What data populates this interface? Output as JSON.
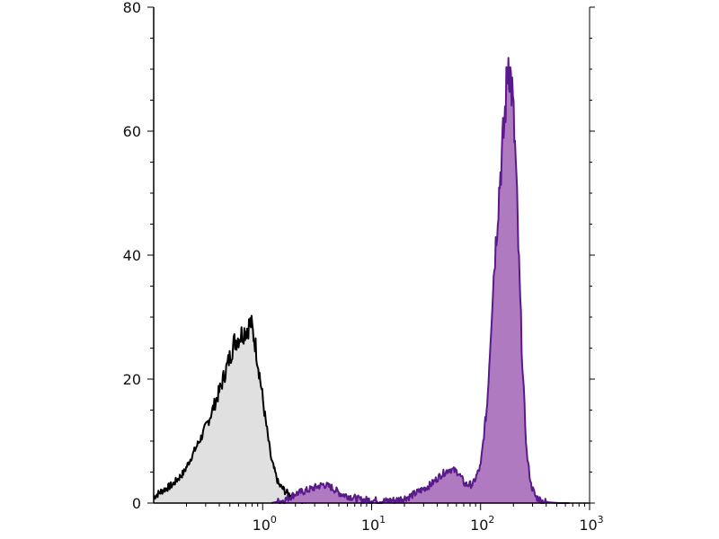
{
  "chart_data": {
    "type": "area",
    "x_scale": "log",
    "xlim": [
      0.1,
      1000
    ],
    "ylim": [
      0,
      80
    ],
    "grid": false,
    "legend": "none",
    "xlabel": "",
    "ylabel": "",
    "x_ticks": [
      {
        "value": 1,
        "base": "10",
        "exp": "0"
      },
      {
        "value": 10,
        "base": "10",
        "exp": "1"
      },
      {
        "value": 100,
        "base": "10",
        "exp": "2"
      },
      {
        "value": 1000,
        "base": "10",
        "exp": "3"
      }
    ],
    "y_ticks": [
      {
        "value": 0,
        "label": "0"
      },
      {
        "value": 20,
        "label": "20"
      },
      {
        "value": 40,
        "label": "40"
      },
      {
        "value": 60,
        "label": "60"
      },
      {
        "value": 80,
        "label": "80"
      }
    ],
    "series": [
      {
        "stroke": "#000000",
        "fill": "#e0e0e0",
        "x": [
          0.1,
          0.12,
          0.15,
          0.19,
          0.23,
          0.28,
          0.33,
          0.4,
          0.47,
          0.55,
          0.62,
          0.7,
          0.78,
          0.85,
          0.95,
          1.05,
          1.2,
          1.4,
          1.7,
          2.1,
          2.5
        ],
        "y": [
          1,
          2,
          3,
          5,
          8,
          11,
          14,
          18,
          22,
          26,
          27,
          28,
          29,
          26,
          20,
          14,
          7,
          3,
          1.5,
          0.5,
          0
        ]
      },
      {
        "stroke": "#5b1a8c",
        "fill": "#b07ac1",
        "x": [
          1.2,
          1.6,
          2.0,
          2.5,
          3.0,
          3.6,
          4.3,
          5.2,
          6.5,
          8,
          10,
          13,
          17,
          22,
          28,
          35,
          43,
          52,
          62,
          72,
          85,
          100,
          115,
          130,
          150,
          165,
          180,
          195,
          210,
          225,
          245,
          265,
          290,
          320,
          370,
          430,
          520,
          650
        ],
        "y": [
          0,
          0.5,
          1.5,
          2,
          2.5,
          3,
          2.5,
          1.5,
          1,
          0.5,
          0.5,
          0.3,
          0.5,
          1,
          2,
          3,
          4.5,
          5.5,
          5,
          3,
          3,
          6,
          16,
          35,
          52,
          61,
          72,
          66,
          55,
          38,
          20,
          8,
          3,
          1,
          0.3,
          0.1,
          0,
          0
        ]
      }
    ]
  }
}
